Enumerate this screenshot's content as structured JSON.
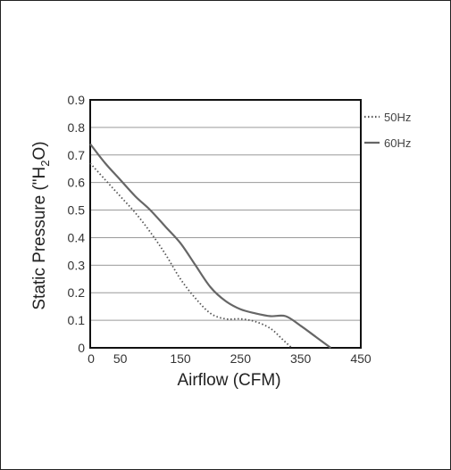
{
  "chart_data": {
    "type": "line",
    "xlabel": "Airflow (CFM)",
    "ylabel_parts": [
      "Static Pressure (\"H",
      "2",
      "O)"
    ],
    "xlim": [
      0,
      450
    ],
    "ylim": [
      0,
      0.9
    ],
    "x_ticks": [
      "0",
      "50",
      "150",
      "250",
      "350",
      "450"
    ],
    "x_tick_values": [
      0,
      50,
      150,
      250,
      350,
      450
    ],
    "y_ticks": [
      "0",
      "0.1",
      "0.2",
      "0.3",
      "0.4",
      "0.5",
      "0.6",
      "0.7",
      "0.8",
      "0.9"
    ],
    "y_tick_values": [
      0,
      0.1,
      0.2,
      0.3,
      0.4,
      0.5,
      0.6,
      0.7,
      0.8,
      0.9
    ],
    "grid": true,
    "legend_position": "right",
    "series": [
      {
        "name": "50Hz",
        "style": "dotted",
        "color": "#555555",
        "points": [
          [
            0,
            0.67
          ],
          [
            25,
            0.61
          ],
          [
            50,
            0.55
          ],
          [
            75,
            0.49
          ],
          [
            100,
            0.42
          ],
          [
            125,
            0.34
          ],
          [
            150,
            0.25
          ],
          [
            175,
            0.18
          ],
          [
            200,
            0.125
          ],
          [
            225,
            0.105
          ],
          [
            250,
            0.105
          ],
          [
            275,
            0.095
          ],
          [
            300,
            0.07
          ],
          [
            320,
            0.03
          ],
          [
            335,
            0.0
          ]
        ]
      },
      {
        "name": "60Hz",
        "style": "solid",
        "color": "#666666",
        "points": [
          [
            0,
            0.74
          ],
          [
            25,
            0.67
          ],
          [
            50,
            0.61
          ],
          [
            75,
            0.55
          ],
          [
            100,
            0.5
          ],
          [
            125,
            0.44
          ],
          [
            150,
            0.38
          ],
          [
            175,
            0.3
          ],
          [
            200,
            0.22
          ],
          [
            225,
            0.17
          ],
          [
            250,
            0.14
          ],
          [
            275,
            0.125
          ],
          [
            300,
            0.115
          ],
          [
            325,
            0.115
          ],
          [
            350,
            0.08
          ],
          [
            375,
            0.04
          ],
          [
            400,
            0.0
          ]
        ]
      }
    ]
  }
}
